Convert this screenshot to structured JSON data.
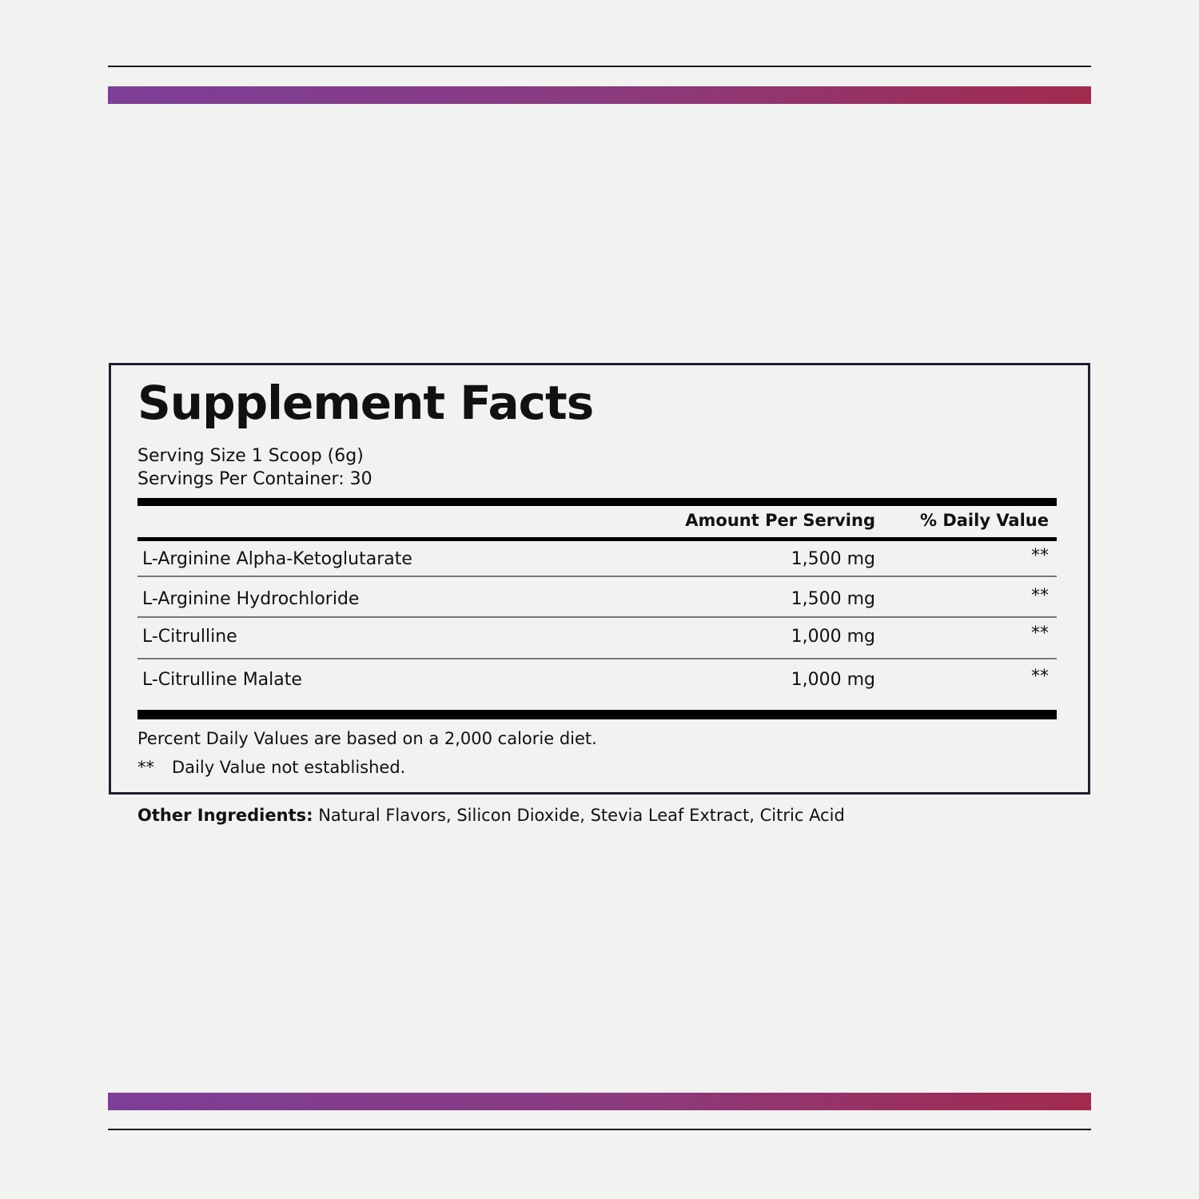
{
  "accent_gradient": [
    "#7e3f98",
    "#a22a4e"
  ],
  "border_color": "#1f1e2e",
  "title": "Supplement Facts",
  "serving_size": "Serving Size 1 Scoop (6g)",
  "servings_per_container": "Servings Per Container: 30",
  "columns": {
    "amount": "Amount Per Serving",
    "daily_value": "% Daily Value"
  },
  "rows": [
    {
      "name": "L-Arginine Alpha-Ketoglutarate",
      "amount": "1,500 mg",
      "dv": "**"
    },
    {
      "name": "L-Arginine Hydrochloride",
      "amount": "1,500 mg",
      "dv": "**"
    },
    {
      "name": "L-Citrulline",
      "amount": "1,000 mg",
      "dv": "**"
    },
    {
      "name": "L-Citrulline Malate",
      "amount": "1,000 mg",
      "dv": "**"
    }
  ],
  "footnote_percent": "Percent Daily Values are based on a 2,000 calorie diet.",
  "footnote_marker": "**",
  "footnote_dv": "Daily Value not established.",
  "other_label": "Other Ingredients:",
  "other_value": "Natural Flavors, Silicon Dioxide, Stevia Leaf Extract, Citric Acid"
}
